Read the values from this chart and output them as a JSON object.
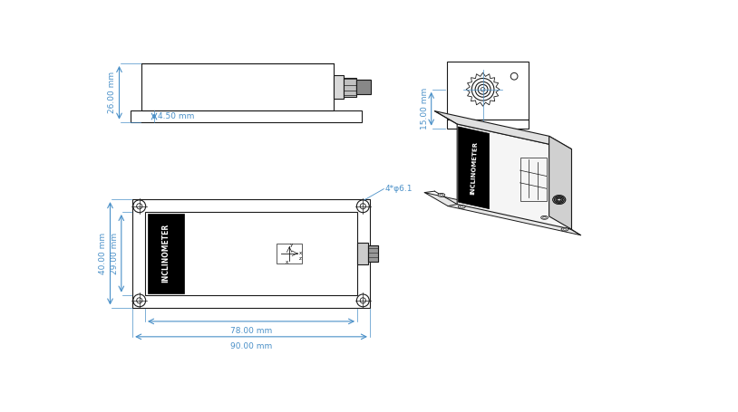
{
  "bg_color": "#ffffff",
  "line_color": "#1a1a1a",
  "dim_color": "#4a90c8",
  "dim_26": "26.00 mm",
  "dim_45": "4.50 mm",
  "dim_15": "15.00 mm",
  "dim_78": "78.00 mm",
  "dim_90": "90.00 mm",
  "dim_40": "40.00 mm",
  "dim_29": "29.00 mm",
  "dim_phi": "4*φ6.1",
  "inclinometer_label": "INCLINOMETER"
}
